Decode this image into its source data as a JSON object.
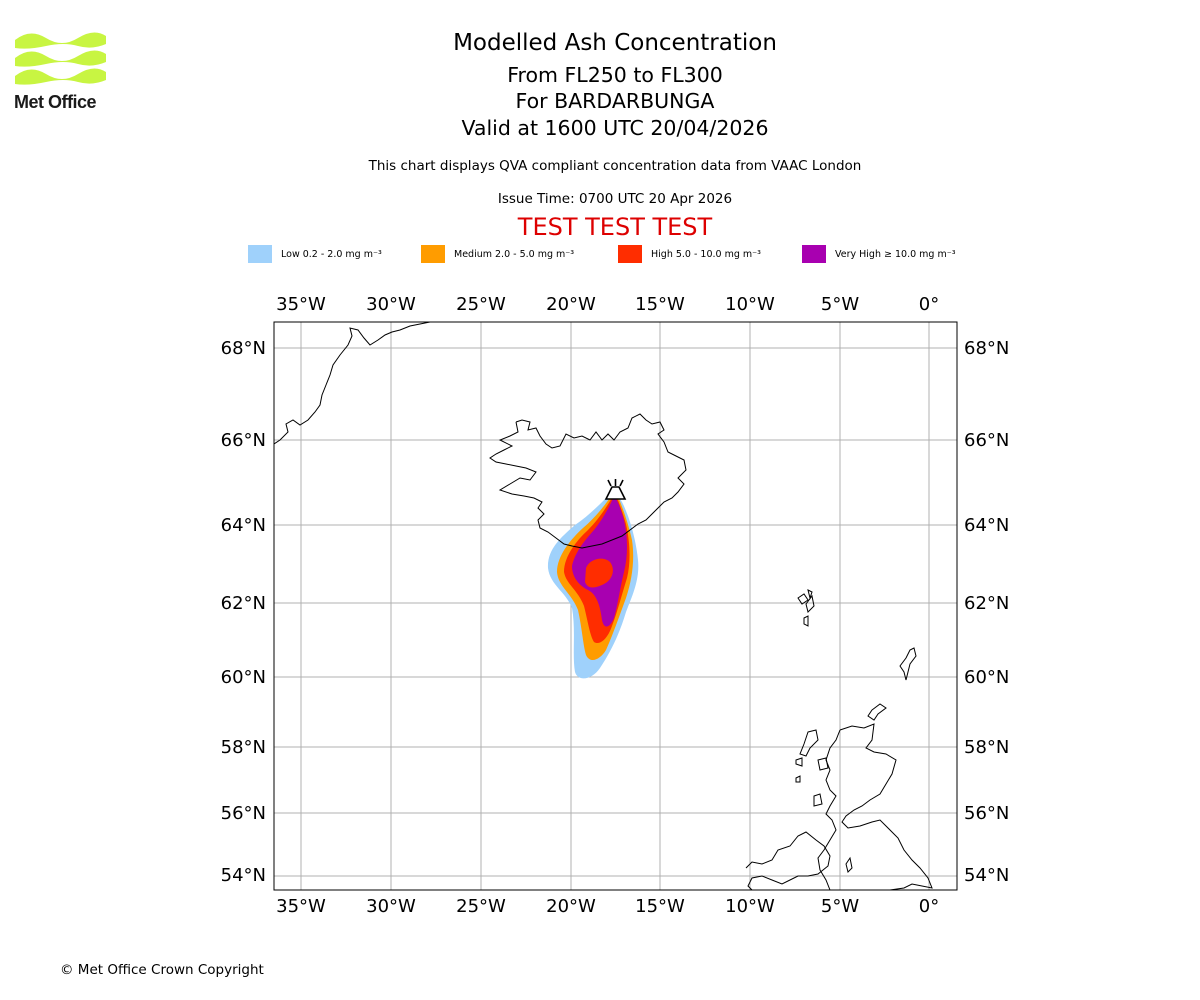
{
  "branding": {
    "logo_text": "Met Office",
    "logo_color": "#c8f542",
    "copyright": "© Met Office Crown Copyright"
  },
  "header": {
    "title": "Modelled Ash Concentration",
    "flight_levels": "From FL250 to FL300",
    "volcano": "For BARDARBUNGA",
    "valid_time": "Valid at 1600 UTC 20/04/2026",
    "description": "This chart displays QVA compliant concentration data from VAAC London",
    "issue_time": "Issue Time: 0700 UTC 20 Apr 2026",
    "test_banner": "TEST TEST TEST",
    "test_banner_color": "#dd0000"
  },
  "legend": [
    {
      "label": "Low 0.2 - 2.0 mg m⁻³",
      "color": "#9fd1fb"
    },
    {
      "label": "Medium 2.0 - 5.0 mg m⁻³",
      "color": "#ff9c00"
    },
    {
      "label": "High 5.0 - 10.0 mg m⁻³",
      "color": "#ff2d00"
    },
    {
      "label": "Very High ≥ 10.0 mg m⁻³",
      "color": "#a800b0"
    }
  ],
  "map": {
    "longitude_ticks": [
      "35°W",
      "30°W",
      "25°W",
      "20°W",
      "15°W",
      "10°W",
      "5°W",
      "0°"
    ],
    "latitude_ticks": [
      "68°N",
      "66°N",
      "64°N",
      "62°N",
      "60°N",
      "58°N",
      "56°N",
      "54°N"
    ],
    "volcano_marker": "volcano-icon",
    "volcano_name": "BARDARBUNGA"
  }
}
